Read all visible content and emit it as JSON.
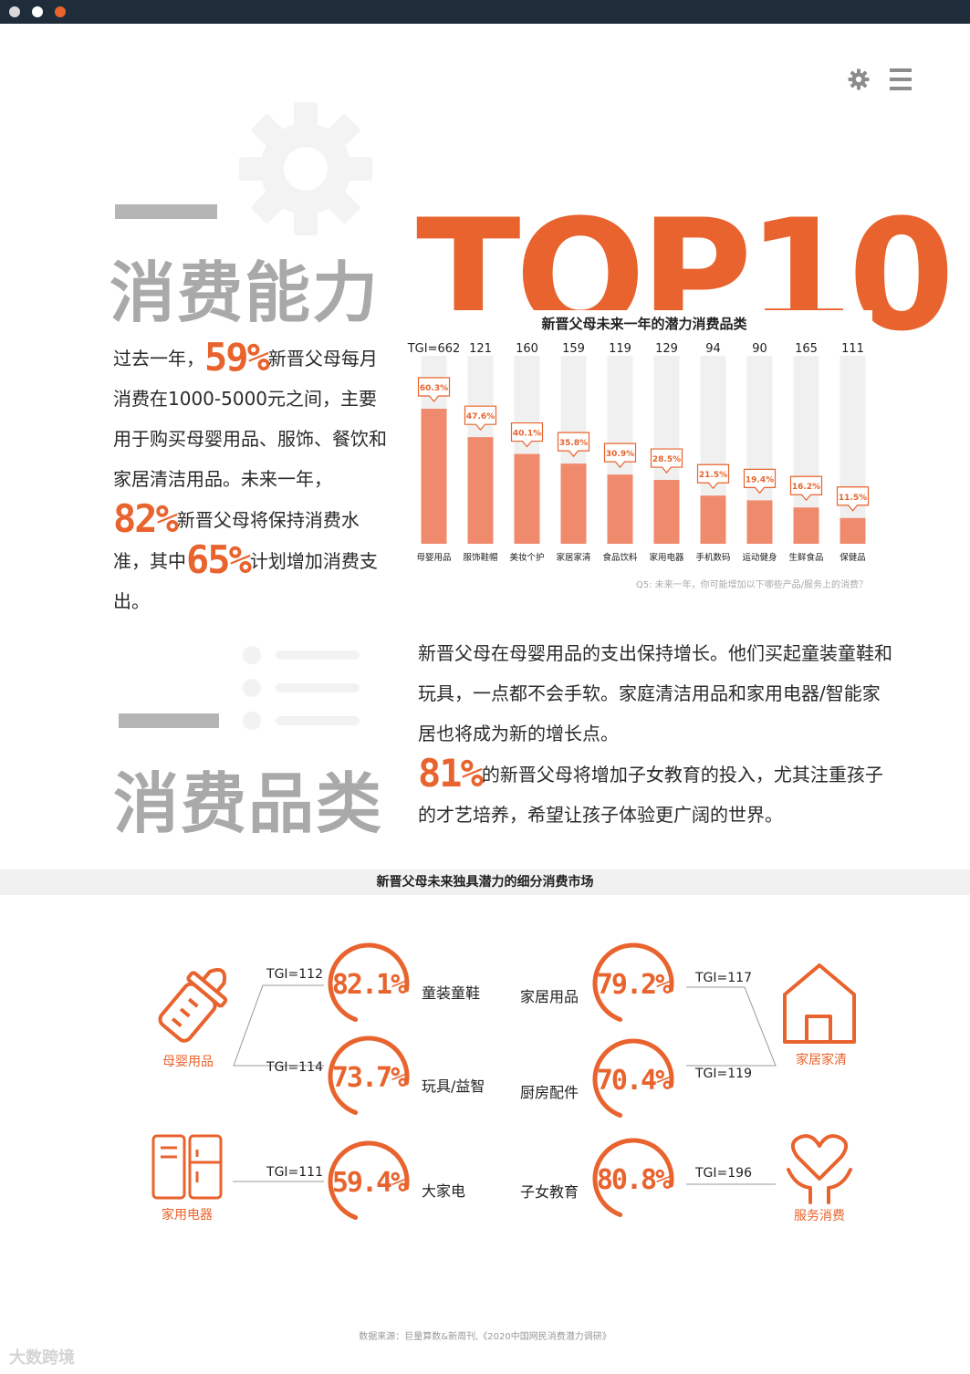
{
  "colors": {
    "accent": "#e8632d",
    "bar": "#f08a6d",
    "track": "#f0f0f0",
    "grey_title": "#a9a9a9",
    "titlebar": "#1f2d3a"
  },
  "window": {
    "dots": [
      "#d9d9d9",
      "#ffffff",
      "#e8632d"
    ]
  },
  "icons": {
    "settings": "gear-icon",
    "menu": "hamburger-menu-icon"
  },
  "section1": {
    "title": "消费能力",
    "para": {
      "t1": "过去一年，",
      "n1": "59%",
      "t2": "新晋父母每月消费在1000-5000元之间，主要用于购买母婴用品、服饰、餐饮和家居清洁用品。未来一年，",
      "n2": "82%",
      "t3": "新晋父母将保持消费水准，其中",
      "n3": "65%",
      "t4": "计划增加消费支出。"
    }
  },
  "top10": "TOP10",
  "chart_data": {
    "type": "bar",
    "title": "新晋父母未来一年的潜力消费品类",
    "categories": [
      "母婴用品",
      "服饰鞋帽",
      "美妆个护",
      "家居家清",
      "食品饮料",
      "家用电器",
      "手机数码",
      "运动健身",
      "生鲜食品",
      "保健品"
    ],
    "values": [
      60.3,
      47.6,
      40.1,
      35.8,
      30.9,
      28.5,
      21.5,
      19.4,
      16.2,
      11.5
    ],
    "value_labels": [
      "60.3%",
      "47.6%",
      "40.1%",
      "35.8%",
      "30.9%",
      "28.5%",
      "21.5%",
      "19.4%",
      "16.2%",
      "11.5%"
    ],
    "tgi": [
      "TGI=662",
      "121",
      "160",
      "159",
      "119",
      "129",
      "94",
      "90",
      "165",
      "111"
    ],
    "ylim": [
      0,
      60.3
    ],
    "grid": false,
    "note": "Q5: 未来一年，你可能增加以下哪些产品/服务上的消费？"
  },
  "section2": {
    "title": "消费品类",
    "para": {
      "t1": "新晋父母在母婴用品的支出保持增长。他们买起童装童鞋和玩具，一点都不会手软。家庭清洁用品和家用电器/智能家居也将成为新的增长点。",
      "n1": "81%",
      "t2": "的新晋父母将增加子女教育的投入，尤其注重孩子的才艺培养，希望让孩子体验更广阔的世界。"
    }
  },
  "band_title": "新晋父母未来独具潜力的细分消费市场",
  "diagram": {
    "left": [
      {
        "category": "母婴用品",
        "icon": "baby-bottle-icon",
        "items": [
          {
            "tgi": "TGI=112",
            "pct": "82.1%",
            "label": "童装童鞋"
          },
          {
            "tgi": "TGI=114",
            "pct": "73.7%",
            "label": "玩具/益智"
          }
        ]
      },
      {
        "category": "家用电器",
        "icon": "refrigerator-icon",
        "items": [
          {
            "tgi": "TGI=111",
            "pct": "59.4%",
            "label": "大家电"
          }
        ]
      }
    ],
    "right": [
      {
        "category": "家居家清",
        "icon": "house-icon",
        "items": [
          {
            "tgi": "TGI=117",
            "pct": "79.2%",
            "label": "家居用品"
          },
          {
            "tgi": "TGI=119",
            "pct": "70.4%",
            "label": "厨房配件"
          }
        ]
      },
      {
        "category": "服务消费",
        "icon": "heart-hands-icon",
        "items": [
          {
            "tgi": "TGI=196",
            "pct": "80.8%",
            "label": "子女教育"
          }
        ]
      }
    ]
  },
  "footer": "数据来源：巨量算数&新周刊,《2020中国网民消费潜力调研》",
  "watermark": "大数跨境"
}
